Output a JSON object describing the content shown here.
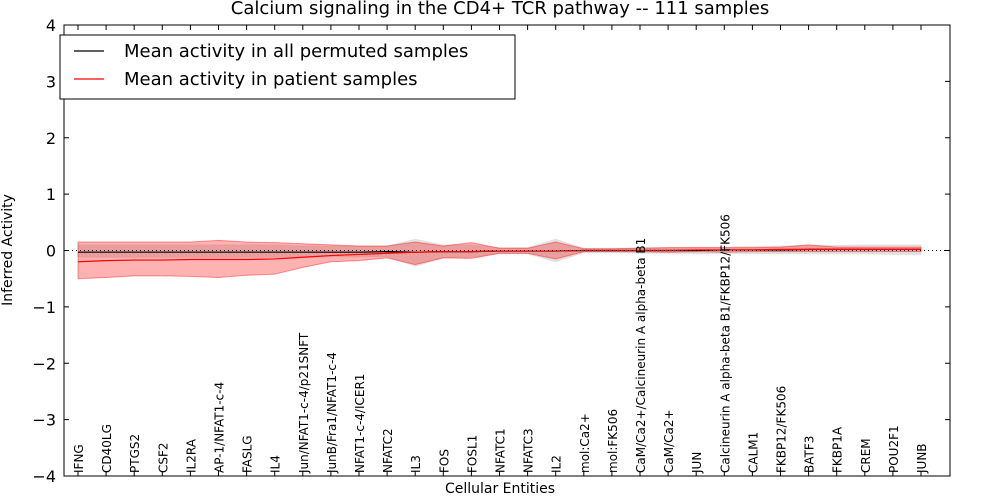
{
  "chart_data": {
    "type": "line",
    "title": "Calcium signaling in the CD4+ TCR pathway -- 111 samples",
    "xlabel": "Cellular Entities",
    "ylabel": "Inferred Activity",
    "ylim": [
      -4,
      4
    ],
    "yticks": [
      -4,
      -3,
      -2,
      -1,
      0,
      1,
      2,
      3,
      4
    ],
    "ytick_labels": [
      "−4",
      "−3",
      "−2",
      "−1",
      "0",
      "1",
      "2",
      "3",
      "4"
    ],
    "grid": false,
    "legend_position": "top-left",
    "categories": [
      "IFNG",
      "CD40LG",
      "PTGS2",
      "CSF2",
      "IL2RA",
      "AP-1/NFAT1-c-4",
      "FASLG",
      "IL4",
      "Jun/NFAT1-c-4/p21SNFT",
      "JunB/Fra1/NFAT1-c-4",
      "NFAT1-c-4/ICER1",
      "NFATC2",
      "IL3",
      "FOS",
      "FOSL1",
      "NFATC1",
      "NFATC3",
      "IL2",
      "mol:Ca2+",
      "mol:FK506",
      "CaM/Ca2+/Calcineurin A alpha-beta B1",
      "CaM/Ca2+",
      "JUN",
      "Calcineurin A alpha-beta B1/FKBP12/FK506",
      "CALM1",
      "FKBP12/FK506",
      "BATF3",
      "FKBP1A",
      "CREM",
      "POU2F1",
      "JUNB"
    ],
    "series": [
      {
        "name": "Mean activity in all permuted samples",
        "color": "#000000",
        "band_color": "#cccccc",
        "values": [
          -0.03,
          -0.03,
          -0.03,
          -0.03,
          -0.03,
          -0.03,
          -0.03,
          -0.03,
          -0.03,
          -0.03,
          -0.03,
          -0.02,
          -0.03,
          -0.02,
          -0.02,
          -0.01,
          -0.01,
          -0.01,
          0.0,
          0.0,
          0.0,
          0.0,
          0.0,
          0.01,
          0.01,
          0.01,
          0.02,
          0.02,
          0.02,
          0.02,
          0.02
        ],
        "lower": [
          -0.12,
          -0.12,
          -0.12,
          -0.12,
          -0.12,
          -0.12,
          -0.12,
          -0.12,
          -0.12,
          -0.11,
          -0.11,
          -0.11,
          -0.28,
          -0.13,
          -0.12,
          -0.06,
          -0.06,
          -0.2,
          -0.04,
          -0.04,
          -0.05,
          -0.05,
          -0.06,
          -0.05,
          -0.06,
          -0.06,
          -0.06,
          -0.06,
          -0.06,
          -0.07,
          -0.07
        ],
        "upper": [
          0.1,
          0.1,
          0.1,
          0.1,
          0.1,
          0.1,
          0.1,
          0.1,
          0.08,
          0.08,
          0.08,
          0.08,
          0.2,
          0.1,
          0.1,
          0.05,
          0.05,
          0.2,
          0.04,
          0.04,
          0.05,
          0.05,
          0.06,
          0.06,
          0.07,
          0.08,
          0.09,
          0.09,
          0.1,
          0.1,
          0.1
        ]
      },
      {
        "name": "Mean activity in patient samples",
        "color": "#ff0000",
        "band_color": "#ff0000",
        "values": [
          -0.2,
          -0.18,
          -0.17,
          -0.17,
          -0.16,
          -0.16,
          -0.16,
          -0.15,
          -0.12,
          -0.09,
          -0.07,
          -0.05,
          -0.03,
          -0.02,
          -0.02,
          -0.01,
          -0.01,
          -0.01,
          0.0,
          0.0,
          0.0,
          0.0,
          0.01,
          0.01,
          0.01,
          0.02,
          0.02,
          0.02,
          0.02,
          0.02,
          0.02
        ],
        "lower": [
          -0.5,
          -0.48,
          -0.45,
          -0.45,
          -0.46,
          -0.48,
          -0.44,
          -0.42,
          -0.3,
          -0.2,
          -0.18,
          -0.13,
          -0.25,
          -0.13,
          -0.14,
          -0.05,
          -0.05,
          -0.15,
          -0.02,
          -0.02,
          -0.02,
          -0.03,
          -0.02,
          -0.03,
          -0.02,
          -0.02,
          -0.02,
          -0.02,
          -0.02,
          -0.02,
          -0.02
        ],
        "upper": [
          0.15,
          0.15,
          0.15,
          0.15,
          0.15,
          0.18,
          0.15,
          0.14,
          0.12,
          0.1,
          0.08,
          0.08,
          0.15,
          0.08,
          0.14,
          0.04,
          0.04,
          0.15,
          0.03,
          0.03,
          0.04,
          0.05,
          0.05,
          0.05,
          0.05,
          0.06,
          0.1,
          0.06,
          0.06,
          0.06,
          0.06
        ]
      }
    ]
  }
}
